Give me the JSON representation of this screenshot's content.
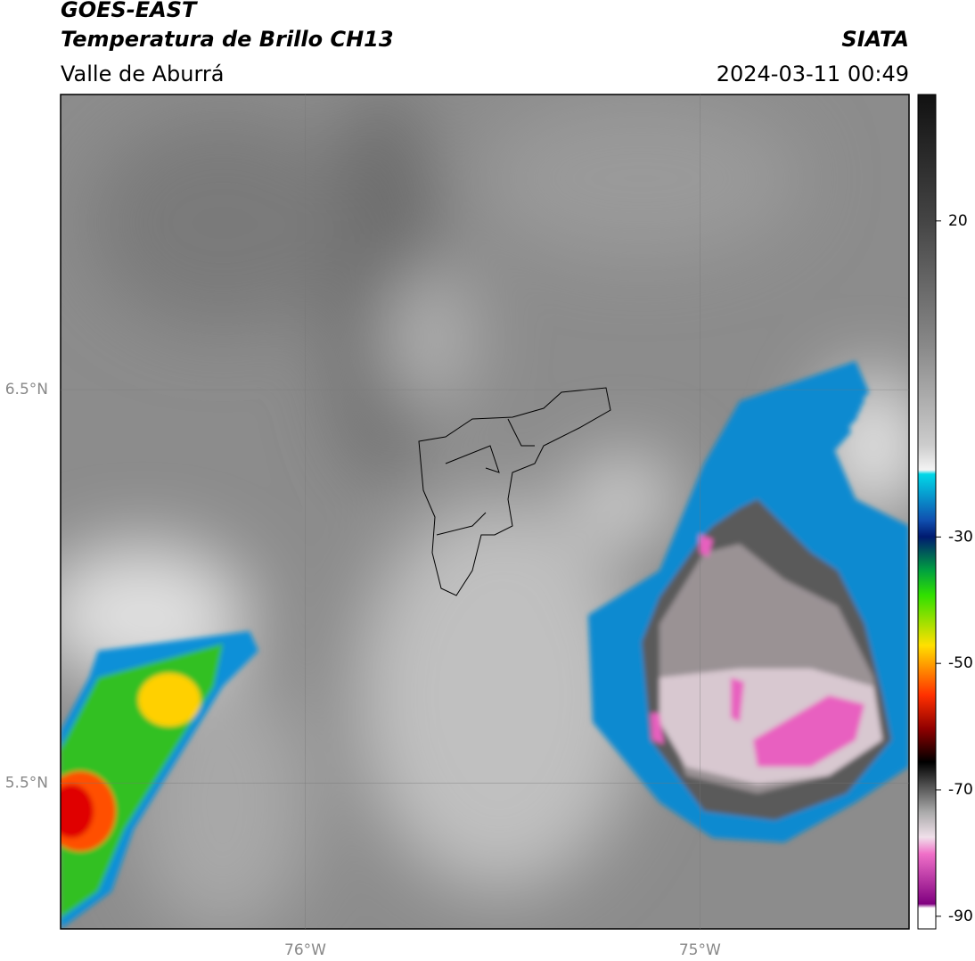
{
  "header": {
    "satellite": "GOES-EAST",
    "product": "Temperatura de Brillo CH13",
    "region": "Valle de Aburrá",
    "agency": "SIATA",
    "datetime": "2024-03-11 00:49"
  },
  "map": {
    "xlim": [
      -76.62,
      -74.47
    ],
    "ylim": [
      5.13,
      7.25
    ],
    "xticks": [
      {
        "value": -76,
        "label": "76°W"
      },
      {
        "value": -75,
        "label": "75°W"
      }
    ],
    "yticks": [
      {
        "value": 6.5,
        "label": "6.5°N"
      },
      {
        "value": 5.5,
        "label": "5.5°N"
      }
    ]
  },
  "colorbar": {
    "range": [
      -92,
      40
    ],
    "ticks": [
      20,
      -30,
      -50,
      -70,
      -90
    ]
  }
}
